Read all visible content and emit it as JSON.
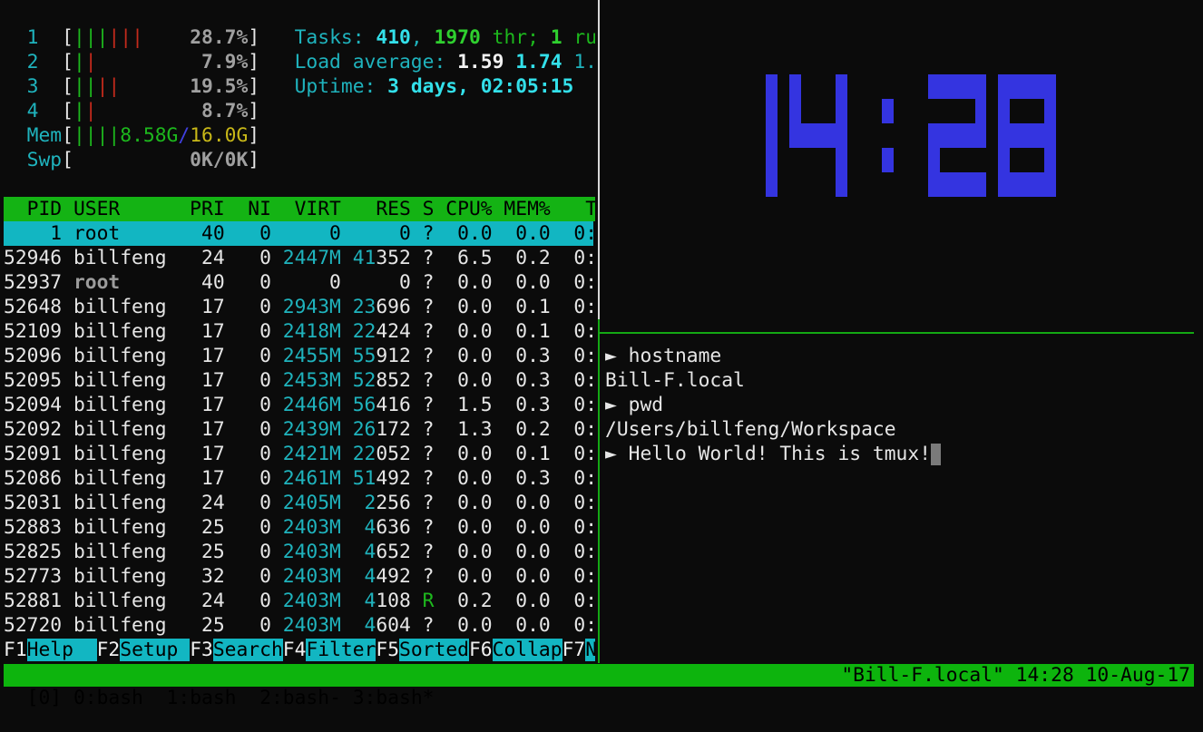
{
  "htop": {
    "cpus": [
      {
        "id": "1",
        "bars": [
          "g",
          "g",
          "g",
          "r",
          "r",
          "r"
        ],
        "percent": "28.7%"
      },
      {
        "id": "2",
        "bars": [
          "g",
          "r"
        ],
        "percent": "7.9%"
      },
      {
        "id": "3",
        "bars": [
          "g",
          "g",
          "r",
          "r"
        ],
        "percent": "19.5%"
      },
      {
        "id": "4",
        "bars": [
          "g",
          "r"
        ],
        "percent": "8.7%"
      }
    ],
    "mem": {
      "label": "Mem",
      "bars": 4,
      "used": "8.58G",
      "total": "16.0G"
    },
    "swp": {
      "label": "Swp",
      "value": "0K/0K"
    },
    "tasks": {
      "label": "Tasks: ",
      "count": "410",
      "threads": "1970",
      "thr_label": " thr; ",
      "running": "1",
      "running_label": " ru"
    },
    "load": {
      "label": "Load average: ",
      "one": "1.59",
      "five": "1.74",
      "fifteen": "1."
    },
    "uptime": {
      "label": "Uptime: ",
      "value": "3 days, 02:05:15"
    },
    "columns": [
      "PID",
      "USER",
      "PRI",
      "NI",
      "VIRT",
      "RES",
      "S",
      "CPU%",
      "MEM%",
      "T"
    ],
    "processes": [
      {
        "pid": "1",
        "user": "root",
        "pri": "40",
        "ni": "0",
        "virt": "0",
        "res": "0",
        "s": "?",
        "cpu": "0.0",
        "mem": "0.0",
        "time": "0:",
        "selected": true
      },
      {
        "pid": "52946",
        "user": "billfeng",
        "pri": "24",
        "ni": "0",
        "virt": "2447M",
        "res": "41352",
        "s": "?",
        "cpu": "6.5",
        "mem": "0.2",
        "time": "0:"
      },
      {
        "pid": "52937",
        "user": "root",
        "pri": "40",
        "ni": "0",
        "virt": "0",
        "res": "0",
        "s": "?",
        "cpu": "0.0",
        "mem": "0.0",
        "time": "0:",
        "other_user": true
      },
      {
        "pid": "52648",
        "user": "billfeng",
        "pri": "17",
        "ni": "0",
        "virt": "2943M",
        "res": "23696",
        "s": "?",
        "cpu": "0.0",
        "mem": "0.1",
        "time": "0:"
      },
      {
        "pid": "52109",
        "user": "billfeng",
        "pri": "17",
        "ni": "0",
        "virt": "2418M",
        "res": "22424",
        "s": "?",
        "cpu": "0.0",
        "mem": "0.1",
        "time": "0:"
      },
      {
        "pid": "52096",
        "user": "billfeng",
        "pri": "17",
        "ni": "0",
        "virt": "2455M",
        "res": "55912",
        "s": "?",
        "cpu": "0.0",
        "mem": "0.3",
        "time": "0:"
      },
      {
        "pid": "52095",
        "user": "billfeng",
        "pri": "17",
        "ni": "0",
        "virt": "2453M",
        "res": "52852",
        "s": "?",
        "cpu": "0.0",
        "mem": "0.3",
        "time": "0:"
      },
      {
        "pid": "52094",
        "user": "billfeng",
        "pri": "17",
        "ni": "0",
        "virt": "2446M",
        "res": "56416",
        "s": "?",
        "cpu": "1.5",
        "mem": "0.3",
        "time": "0:"
      },
      {
        "pid": "52092",
        "user": "billfeng",
        "pri": "17",
        "ni": "0",
        "virt": "2439M",
        "res": "26172",
        "s": "?",
        "cpu": "1.3",
        "mem": "0.2",
        "time": "0:"
      },
      {
        "pid": "52091",
        "user": "billfeng",
        "pri": "17",
        "ni": "0",
        "virt": "2421M",
        "res": "22052",
        "s": "?",
        "cpu": "0.0",
        "mem": "0.1",
        "time": "0:"
      },
      {
        "pid": "52086",
        "user": "billfeng",
        "pri": "17",
        "ni": "0",
        "virt": "2461M",
        "res": "51492",
        "s": "?",
        "cpu": "0.0",
        "mem": "0.3",
        "time": "0:"
      },
      {
        "pid": "52031",
        "user": "billfeng",
        "pri": "24",
        "ni": "0",
        "virt": "2405M",
        "res": "2256",
        "s": "?",
        "cpu": "0.0",
        "mem": "0.0",
        "time": "0:"
      },
      {
        "pid": "52883",
        "user": "billfeng",
        "pri": "25",
        "ni": "0",
        "virt": "2403M",
        "res": "4636",
        "s": "?",
        "cpu": "0.0",
        "mem": "0.0",
        "time": "0:"
      },
      {
        "pid": "52825",
        "user": "billfeng",
        "pri": "25",
        "ni": "0",
        "virt": "2403M",
        "res": "4652",
        "s": "?",
        "cpu": "0.0",
        "mem": "0.0",
        "time": "0:"
      },
      {
        "pid": "52773",
        "user": "billfeng",
        "pri": "32",
        "ni": "0",
        "virt": "2403M",
        "res": "4492",
        "s": "?",
        "cpu": "0.0",
        "mem": "0.0",
        "time": "0:"
      },
      {
        "pid": "52881",
        "user": "billfeng",
        "pri": "24",
        "ni": "0",
        "virt": "2403M",
        "res": "4108",
        "s": "R",
        "cpu": "0.2",
        "mem": "0.0",
        "time": "0:"
      },
      {
        "pid": "52720",
        "user": "billfeng",
        "pri": "25",
        "ni": "0",
        "virt": "2403M",
        "res": "4604",
        "s": "?",
        "cpu": "0.0",
        "mem": "0.0",
        "time": "0:"
      }
    ],
    "function_keys": [
      {
        "key": "F1",
        "label": "Help  "
      },
      {
        "key": "F2",
        "label": "Setup "
      },
      {
        "key": "F3",
        "label": "Search"
      },
      {
        "key": "F4",
        "label": "Filter"
      },
      {
        "key": "F5",
        "label": "Sorted"
      },
      {
        "key": "F6",
        "label": "Collap"
      },
      {
        "key": "F7",
        "label": "N"
      }
    ]
  },
  "clock": {
    "time": "14:28",
    "color": "#3434e0"
  },
  "shell": {
    "prompt_icon": "►",
    "lines": [
      {
        "type": "cmd",
        "text": "hostname"
      },
      {
        "type": "out",
        "text": "Bill-F.local"
      },
      {
        "type": "cmd",
        "text": "pwd"
      },
      {
        "type": "out",
        "text": "/Users/billfeng/Workspace"
      },
      {
        "type": "cmd",
        "text": "Hello World! This is tmux!",
        "cursor": true
      }
    ]
  },
  "tmux_status": {
    "session": "[0]",
    "windows": [
      "0:bash",
      "1:bash",
      "2:bash-",
      "3:bash*"
    ],
    "host": "\"Bill-F.local\"",
    "time": "14:28",
    "date": "10-Aug-17",
    "color": "#0db40d"
  }
}
